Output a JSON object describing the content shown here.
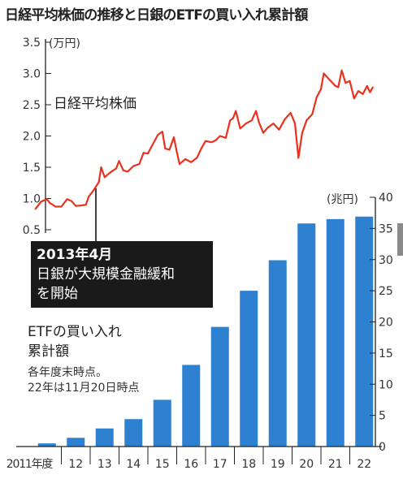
{
  "title": "日経平均株価の推移と日銀のETFの買い入れ累計額",
  "colors": {
    "line": "#e8321e",
    "bar": "#2e80d0",
    "annotation_bg": "#1a1a1a",
    "axis": "#222222"
  },
  "chart_data": [
    {
      "type": "line",
      "series_label": "日経平均株価",
      "unit": "(万円)",
      "yticks": [
        "0.5",
        "1.0",
        "1.5",
        "2.0",
        "2.5",
        "3.0",
        "3.5"
      ],
      "ylim": [
        0.5,
        3.5
      ],
      "xlim": [
        2011.0,
        2022.9
      ],
      "points": [
        [
          2011.1,
          0.83
        ],
        [
          2011.3,
          0.95
        ],
        [
          2011.5,
          0.99
        ],
        [
          2011.6,
          0.93
        ],
        [
          2011.8,
          0.87
        ],
        [
          2012.0,
          0.87
        ],
        [
          2012.2,
          0.99
        ],
        [
          2012.35,
          0.96
        ],
        [
          2012.5,
          0.88
        ],
        [
          2012.7,
          0.89
        ],
        [
          2012.85,
          0.9
        ],
        [
          2012.95,
          1.03
        ],
        [
          2013.1,
          1.12
        ],
        [
          2013.3,
          1.26
        ],
        [
          2013.38,
          1.5
        ],
        [
          2013.5,
          1.34
        ],
        [
          2013.7,
          1.42
        ],
        [
          2013.9,
          1.48
        ],
        [
          2014.0,
          1.6
        ],
        [
          2014.15,
          1.45
        ],
        [
          2014.3,
          1.43
        ],
        [
          2014.5,
          1.52
        ],
        [
          2014.7,
          1.55
        ],
        [
          2014.85,
          1.73
        ],
        [
          2015.0,
          1.72
        ],
        [
          2015.15,
          1.85
        ],
        [
          2015.35,
          2.02
        ],
        [
          2015.5,
          2.07
        ],
        [
          2015.6,
          1.8
        ],
        [
          2015.75,
          1.78
        ],
        [
          2015.9,
          1.98
        ],
        [
          2016.0,
          1.75
        ],
        [
          2016.1,
          1.55
        ],
        [
          2016.3,
          1.63
        ],
        [
          2016.5,
          1.58
        ],
        [
          2016.7,
          1.65
        ],
        [
          2016.85,
          1.8
        ],
        [
          2017.0,
          1.92
        ],
        [
          2017.2,
          1.9
        ],
        [
          2017.35,
          1.93
        ],
        [
          2017.5,
          2.0
        ],
        [
          2017.7,
          1.97
        ],
        [
          2017.85,
          2.25
        ],
        [
          2017.95,
          2.28
        ],
        [
          2018.05,
          2.4
        ],
        [
          2018.2,
          2.12
        ],
        [
          2018.4,
          2.2
        ],
        [
          2018.6,
          2.25
        ],
        [
          2018.75,
          2.4
        ],
        [
          2018.85,
          2.22
        ],
        [
          2019.0,
          2.05
        ],
        [
          2019.15,
          2.13
        ],
        [
          2019.35,
          2.2
        ],
        [
          2019.55,
          2.1
        ],
        [
          2019.75,
          2.27
        ],
        [
          2019.95,
          2.37
        ],
        [
          2020.1,
          2.2
        ],
        [
          2020.22,
          1.65
        ],
        [
          2020.35,
          2.05
        ],
        [
          2020.5,
          2.25
        ],
        [
          2020.7,
          2.35
        ],
        [
          2020.85,
          2.62
        ],
        [
          2021.0,
          2.75
        ],
        [
          2021.1,
          3.0
        ],
        [
          2021.3,
          2.9
        ],
        [
          2021.5,
          2.8
        ],
        [
          2021.6,
          2.78
        ],
        [
          2021.72,
          3.05
        ],
        [
          2021.85,
          2.85
        ],
        [
          2022.0,
          2.88
        ],
        [
          2022.15,
          2.6
        ],
        [
          2022.3,
          2.72
        ],
        [
          2022.45,
          2.67
        ],
        [
          2022.6,
          2.8
        ],
        [
          2022.7,
          2.7
        ],
        [
          2022.8,
          2.78
        ]
      ]
    },
    {
      "type": "bar",
      "series_label": "ETFの買い入れ\n累計額",
      "note": "各年度末時点。\n22年は11月20日時点",
      "unit": "(兆円)",
      "categories": [
        "2011年度",
        "12",
        "13",
        "14",
        "15",
        "16",
        "17",
        "18",
        "19",
        "20",
        "21",
        "22"
      ],
      "values": [
        0.5,
        1.4,
        2.9,
        4.4,
        7.5,
        13.1,
        19.2,
        25.0,
        29.9,
        35.8,
        36.5,
        36.9
      ],
      "yticks": [
        "0",
        "5",
        "10",
        "15",
        "20",
        "25",
        "30",
        "35",
        "40"
      ],
      "ylim": [
        0,
        40
      ]
    }
  ],
  "annotation": {
    "text": "2013年4月\n日銀が大規模金融緩和\nを開始"
  }
}
